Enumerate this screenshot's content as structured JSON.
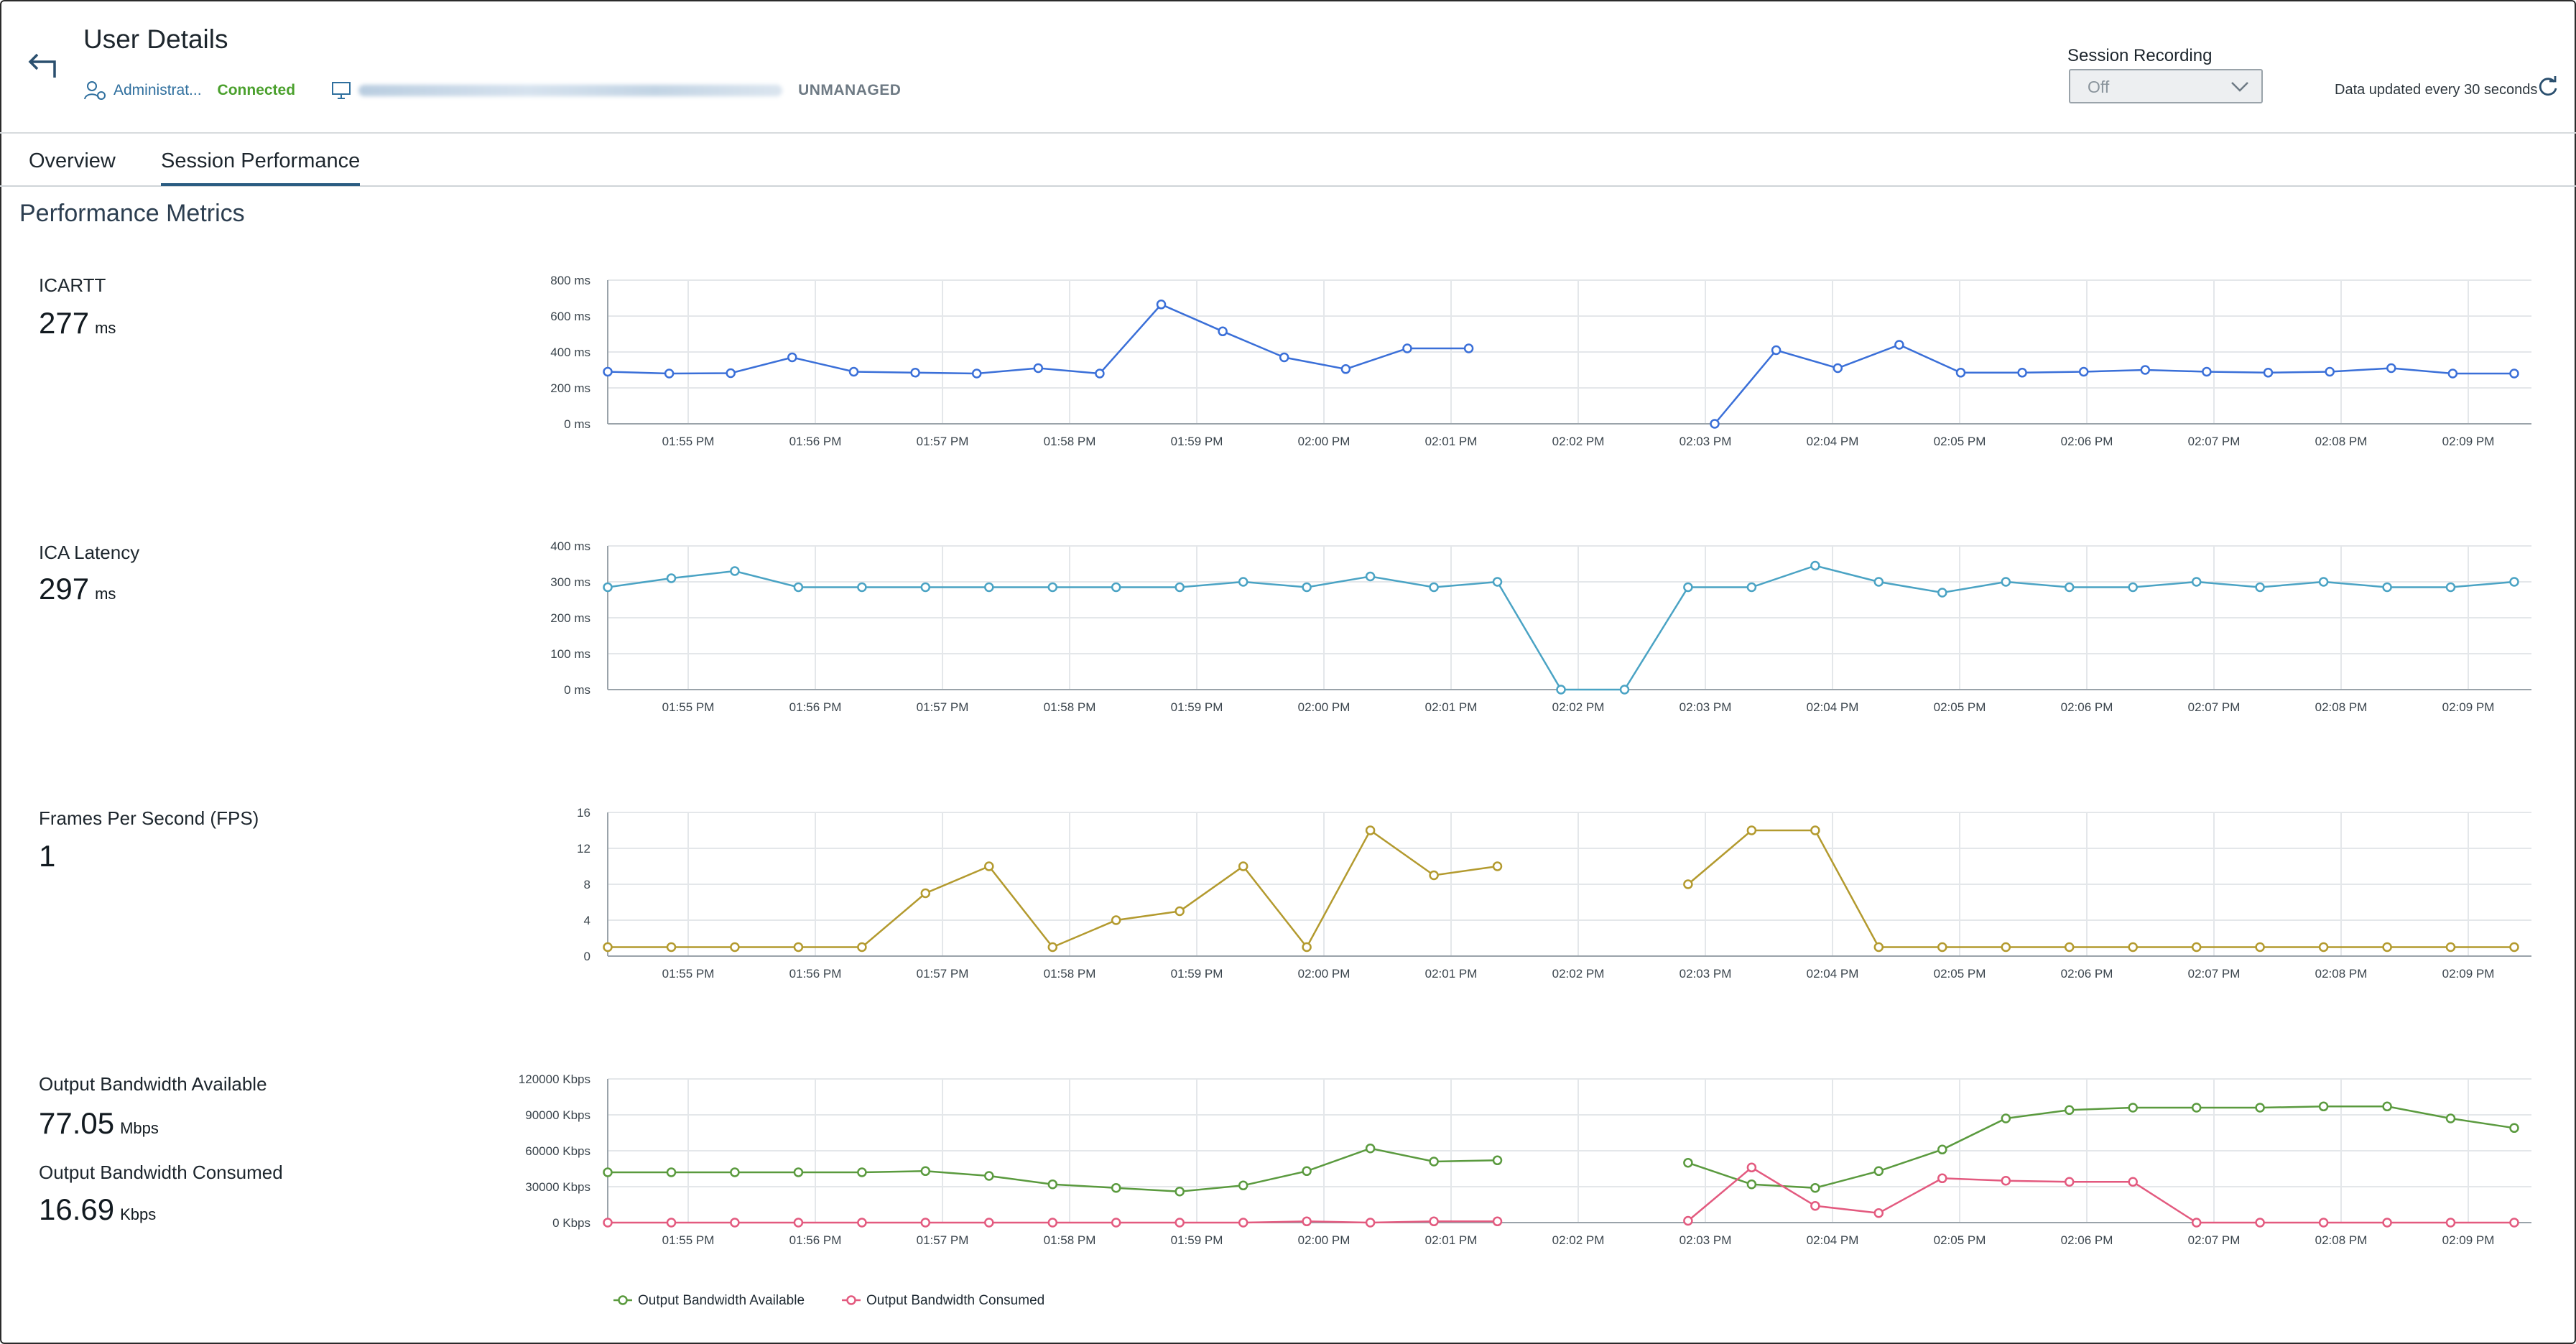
{
  "header": {
    "title": "User Details",
    "user_label": "Administrat...",
    "status": "Connected",
    "management": "UNMANAGED",
    "session_recording_label": "Session Recording",
    "session_recording_value": "Off",
    "data_updated": "Data updated every 30 seconds"
  },
  "tabs": [
    {
      "label": "Overview",
      "active": false
    },
    {
      "label": "Session Performance",
      "active": true
    }
  ],
  "section_title": "Performance Metrics",
  "metrics": [
    {
      "name": "ICARTT",
      "value": "277",
      "unit": "ms"
    },
    {
      "name": "ICA Latency",
      "value": "297",
      "unit": "ms"
    },
    {
      "name": "Frames Per Second (FPS)",
      "value": "1",
      "unit": ""
    },
    {
      "name": "Output Bandwidth Available",
      "value": "77.05",
      "unit": "Mbps"
    },
    {
      "name": "Output Bandwidth Consumed",
      "value": "16.69",
      "unit": "Kbps"
    }
  ],
  "colors": {
    "icartt": "#3a6fd8",
    "latency": "#4aa3c4",
    "fps": "#b39a2e",
    "bw_available": "#5a9a3e",
    "bw_consumed": "#e35a7f",
    "grid": "#e4e7ea"
  },
  "chart_data": [
    {
      "type": "line",
      "id": "icartt",
      "x_ticks": [
        "01:55 PM",
        "01:56 PM",
        "01:57 PM",
        "01:58 PM",
        "01:59 PM",
        "02:00 PM",
        "02:01 PM",
        "02:02 PM",
        "02:03 PM",
        "02:04 PM",
        "02:05 PM",
        "02:06 PM",
        "02:07 PM",
        "02:08 PM",
        "02:09 PM"
      ],
      "y_ticks": [
        "0 ms",
        "200 ms",
        "400 ms",
        "600 ms",
        "800 ms"
      ],
      "ylim": [
        0,
        800
      ],
      "series": [
        {
          "color_key": "icartt",
          "values": [
            290,
            280,
            282,
            370,
            290,
            285,
            280,
            310,
            280,
            665,
            515,
            370,
            305,
            420,
            420,
            null,
            null,
            null,
            0,
            410,
            310,
            440,
            285,
            285,
            290,
            300,
            290,
            285,
            290,
            310,
            280,
            280
          ]
        }
      ]
    },
    {
      "type": "line",
      "id": "latency",
      "x_ticks": [
        "01:55 PM",
        "01:56 PM",
        "01:57 PM",
        "01:58 PM",
        "01:59 PM",
        "02:00 PM",
        "02:01 PM",
        "02:02 PM",
        "02:03 PM",
        "02:04 PM",
        "02:05 PM",
        "02:06 PM",
        "02:07 PM",
        "02:08 PM",
        "02:09 PM"
      ],
      "y_ticks": [
        "0 ms",
        "100 ms",
        "200 ms",
        "300 ms",
        "400 ms"
      ],
      "ylim": [
        0,
        400
      ],
      "series": [
        {
          "color_key": "latency",
          "values": [
            285,
            310,
            330,
            285,
            285,
            285,
            285,
            285,
            285,
            285,
            300,
            285,
            315,
            285,
            300,
            0,
            0,
            285,
            285,
            345,
            300,
            270,
            300,
            285,
            285,
            300,
            285,
            300,
            285,
            285,
            300
          ]
        }
      ]
    },
    {
      "type": "line",
      "id": "fps",
      "x_ticks": [
        "01:55 PM",
        "01:56 PM",
        "01:57 PM",
        "01:58 PM",
        "01:59 PM",
        "02:00 PM",
        "02:01 PM",
        "02:02 PM",
        "02:03 PM",
        "02:04 PM",
        "02:05 PM",
        "02:06 PM",
        "02:07 PM",
        "02:08 PM",
        "02:09 PM"
      ],
      "y_ticks": [
        "0",
        "4",
        "8",
        "12",
        "16"
      ],
      "ylim": [
        0,
        16
      ],
      "series": [
        {
          "color_key": "fps",
          "values": [
            1,
            1,
            1,
            1,
            1,
            7,
            10,
            1,
            4,
            5,
            10,
            1,
            14,
            9,
            10,
            null,
            null,
            8,
            14,
            14,
            1,
            1,
            1,
            1,
            1,
            1,
            1,
            1,
            1,
            1,
            1
          ]
        }
      ]
    },
    {
      "type": "line",
      "id": "bandwidth",
      "x_ticks": [
        "01:55 PM",
        "01:56 PM",
        "01:57 PM",
        "01:58 PM",
        "01:59 PM",
        "02:00 PM",
        "02:01 PM",
        "02:02 PM",
        "02:03 PM",
        "02:04 PM",
        "02:05 PM",
        "02:06 PM",
        "02:07 PM",
        "02:08 PM",
        "02:09 PM"
      ],
      "y_ticks": [
        "0 Kbps",
        "30000 Kbps",
        "60000 Kbps",
        "90000 Kbps",
        "120000 Kbps"
      ],
      "ylim": [
        0,
        120000
      ],
      "series": [
        {
          "name": "Output Bandwidth Available",
          "color_key": "bw_available",
          "values": [
            42000,
            42000,
            42000,
            42000,
            42000,
            43000,
            39000,
            32000,
            29000,
            26000,
            31000,
            43000,
            62000,
            51000,
            52000,
            null,
            null,
            50000,
            32000,
            29000,
            43000,
            61000,
            87000,
            94000,
            96000,
            96000,
            96000,
            97000,
            97000,
            87000,
            79000
          ]
        },
        {
          "name": "Output Bandwidth Consumed",
          "color_key": "bw_consumed",
          "values": [
            0,
            0,
            0,
            0,
            0,
            0,
            0,
            0,
            0,
            0,
            0,
            1000,
            0,
            1000,
            1000,
            null,
            null,
            1500,
            46000,
            14000,
            8000,
            37000,
            35000,
            34000,
            34000,
            0,
            0,
            0,
            0,
            0,
            0
          ]
        }
      ]
    }
  ]
}
